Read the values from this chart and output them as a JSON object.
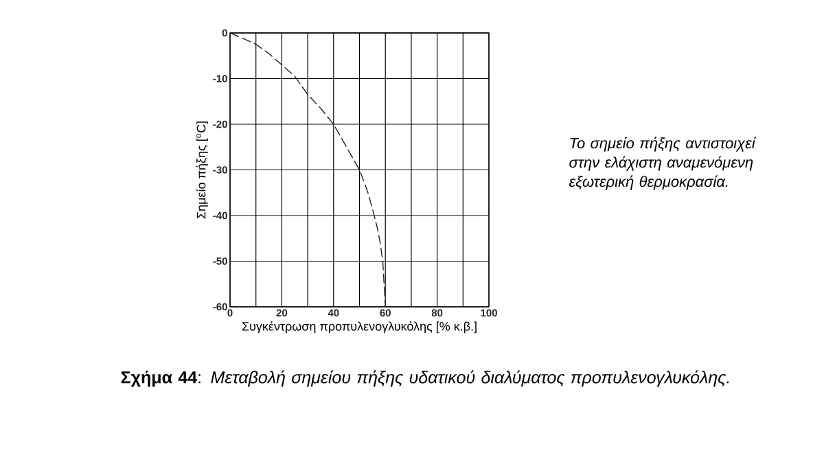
{
  "chart_data": {
    "type": "line",
    "title": "**Σχήμα 44**: *Μεταβολή σημείου πήξης υδατικού διαλύματος προπυλενογλυκόλης.*",
    "xlabel": "Συγκέντρωση προπυλενογλυκόλης [% κ.β.]",
    "ylabel": "Σημείο πήξης [$^{o}$C]",
    "annotations": [
      "Το σημείο πήξης αντιστοιχεί στην ελάχιστη αναμενόμενη εξωτερική θερμοκρασία."
    ],
    "series": [
      {
        "color": "#222222",
        "line_style": "dashed",
        "x": [
          0,
          5,
          10,
          15,
          20,
          25,
          30,
          35,
          40,
          45,
          50,
          53,
          55,
          57,
          58,
          59,
          59.5,
          60
        ],
        "values": [
          0,
          -1.2,
          -2.5,
          -4.5,
          -7,
          -9.5,
          -13.5,
          -16.5,
          -20,
          -25,
          -30,
          -34.5,
          -38.5,
          -43,
          -46,
          -50,
          -55,
          -60
        ]
      }
    ],
    "xlim": [
      0,
      100
    ],
    "ylim": [
      -60,
      0
    ],
    "xticks": [
      0,
      {
        "value": 10,
        "label": null
      },
      20,
      {
        "value": 30,
        "label": null
      },
      40,
      {
        "value": 50,
        "label": null
      },
      60,
      {
        "value": 70,
        "label": null
      },
      80,
      {
        "value": 90,
        "label": null
      },
      100
    ],
    "yticks": [
      -60,
      -50,
      -40,
      -30,
      -20,
      -10,
      0
    ],
    "grid": true,
    "marker": "none"
  }
}
